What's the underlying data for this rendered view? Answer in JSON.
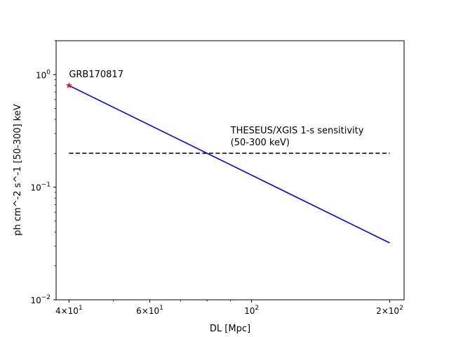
{
  "chart_data": {
    "type": "line",
    "title": "",
    "xlabel": "DL [Mpc]",
    "ylabel": "ph cm^-2 s^-1 [50-300] keV",
    "xscale": "log",
    "yscale": "log",
    "xlim": [
      37.5,
      215
    ],
    "ylim": [
      0.01,
      2
    ],
    "grid": false,
    "x_ticks": [
      {
        "value": 40,
        "mantissa": "4",
        "exponent": "1"
      },
      {
        "value": 60,
        "mantissa": "6",
        "exponent": "1"
      },
      {
        "value": 100,
        "mantissa": "",
        "exponent": "2"
      },
      {
        "value": 200,
        "mantissa": "2",
        "exponent": "2"
      }
    ],
    "x_minor_ticks": [
      50,
      70,
      80,
      90
    ],
    "y_ticks": [
      {
        "value": 0.01,
        "exponent": "−2"
      },
      {
        "value": 0.1,
        "exponent": "−1"
      },
      {
        "value": 1,
        "exponent": "0"
      }
    ],
    "y_minor_ticks": [
      0.02,
      0.03,
      0.04,
      0.05,
      0.06,
      0.07,
      0.08,
      0.09,
      0.2,
      0.3,
      0.4,
      0.5,
      0.6,
      0.7,
      0.8,
      0.9,
      2
    ],
    "series": [
      {
        "style": "solid",
        "color": "#0000ff",
        "x": [
          40,
          200
        ],
        "y": [
          0.8,
          0.032
        ]
      },
      {
        "style": "dashed",
        "color": "#000000",
        "x": [
          40,
          200
        ],
        "y": [
          0.2,
          0.2
        ]
      }
    ],
    "points": [
      {
        "x": 40,
        "y": 0.8,
        "marker": "star",
        "color": "#d62728"
      }
    ],
    "annotations": [
      {
        "text": "GRB170817",
        "x": 40,
        "y": 0.95
      },
      {
        "text": "THESEUS/XGIS 1-s sensitivity",
        "x": 90,
        "y": 0.3
      },
      {
        "text": "(50-300 keV)",
        "x": 90,
        "y": 0.235
      }
    ]
  }
}
